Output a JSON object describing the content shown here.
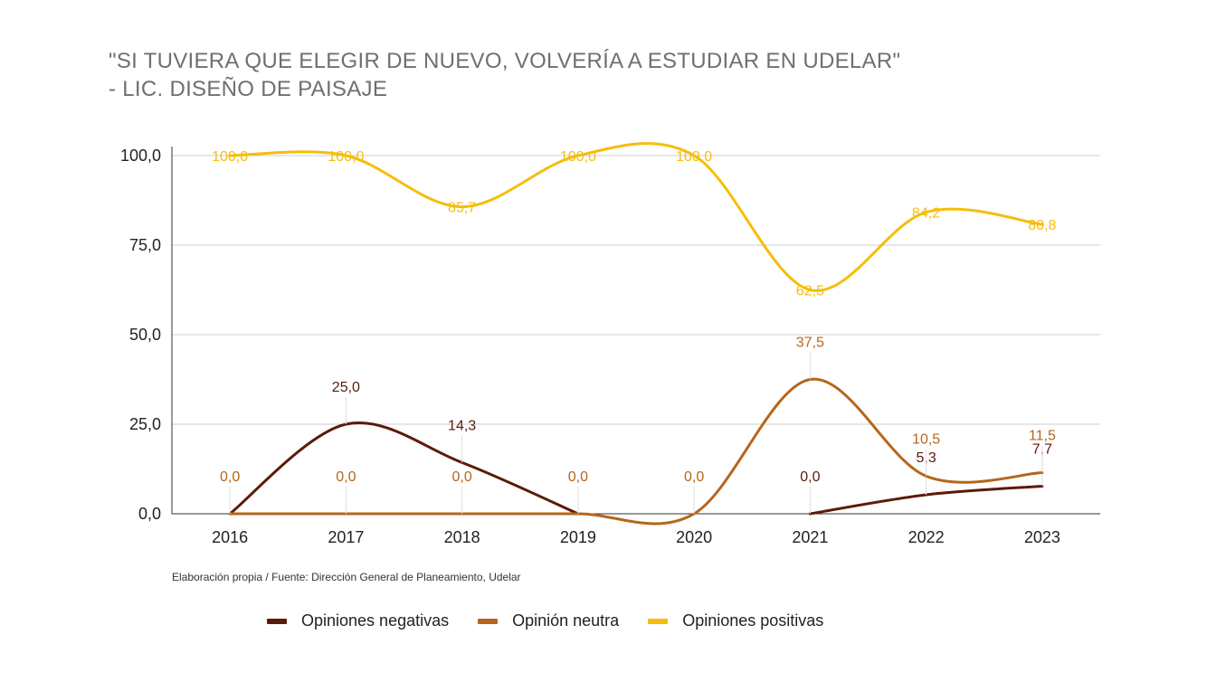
{
  "title_lines": [
    "\"SI TUVIERA QUE ELEGIR DE NUEVO, VOLVERÍA A ESTUDIAR EN UDELAR\"",
    "- LIC. DISEÑO DE PAISAJE"
  ],
  "source": "Elaboración propia / Fuente: Dirección General de Planeamiento, Udelar",
  "chart_data": {
    "type": "line",
    "smooth": true,
    "categories": [
      "2016",
      "2017",
      "2018",
      "2019",
      "2020",
      "2021",
      "2022",
      "2023"
    ],
    "ylim": [
      0,
      100
    ],
    "yticks": [
      0,
      25,
      50,
      75,
      100
    ],
    "ytick_labels": [
      "0,0",
      "25,0",
      "50,0",
      "75,0",
      "100,0"
    ],
    "grid": true,
    "legend_position": "bottom",
    "series": [
      {
        "name": "Opiniones negativas",
        "color": "#5c1a0b",
        "values": [
          0,
          25,
          14.3,
          0,
          null,
          0,
          5.3,
          7.7
        ],
        "labels": [
          null,
          "25,0",
          "14,3",
          null,
          null,
          "0,0",
          "5,3",
          "7,7"
        ]
      },
      {
        "name": "Opinión neutra",
        "color": "#b5661b",
        "values": [
          0,
          0,
          0,
          0,
          0,
          37.5,
          10.5,
          11.5
        ],
        "labels": [
          "0,0",
          "0,0",
          "0,0",
          "0,0",
          "0,0",
          "37,5",
          "10,5",
          "11,5"
        ]
      },
      {
        "name": "Opiniones positivas",
        "color": "#f5be0b",
        "values": [
          100,
          100,
          85.7,
          100,
          100,
          62.5,
          84.2,
          80.8
        ],
        "labels": [
          "100,0",
          "100,0",
          "85,7",
          "100,0",
          "100,0",
          "62,5",
          "84,2",
          "80,8"
        ]
      }
    ]
  }
}
